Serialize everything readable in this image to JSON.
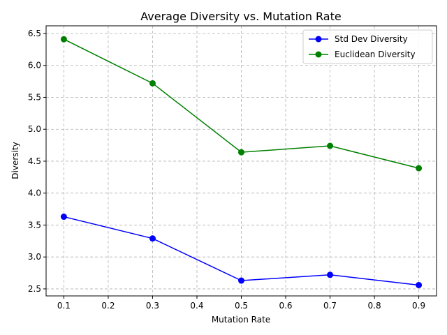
{
  "chart_data": {
    "type": "line",
    "title": "Average Diversity vs. Mutation Rate",
    "xlabel": "Mutation Rate",
    "ylabel": "Diversity",
    "x": [
      0.1,
      0.3,
      0.5,
      0.7,
      0.9
    ],
    "xlim": [
      0.06,
      0.94
    ],
    "ylim": [
      2.39,
      6.62
    ],
    "xticks": [
      0.1,
      0.2,
      0.3,
      0.4,
      0.5,
      0.6,
      0.7,
      0.8,
      0.9
    ],
    "yticks": [
      2.5,
      3.0,
      3.5,
      4.0,
      4.5,
      5.0,
      5.5,
      6.0,
      6.5
    ],
    "grid": true,
    "legend_position": "top-right",
    "series": [
      {
        "name": "Std Dev Diversity",
        "color": "#0000ff",
        "values": [
          3.63,
          3.29,
          2.63,
          2.72,
          2.56
        ]
      },
      {
        "name": "Euclidean Diversity",
        "color": "#008000",
        "values": [
          6.41,
          5.72,
          4.64,
          4.74,
          4.39
        ]
      }
    ]
  }
}
